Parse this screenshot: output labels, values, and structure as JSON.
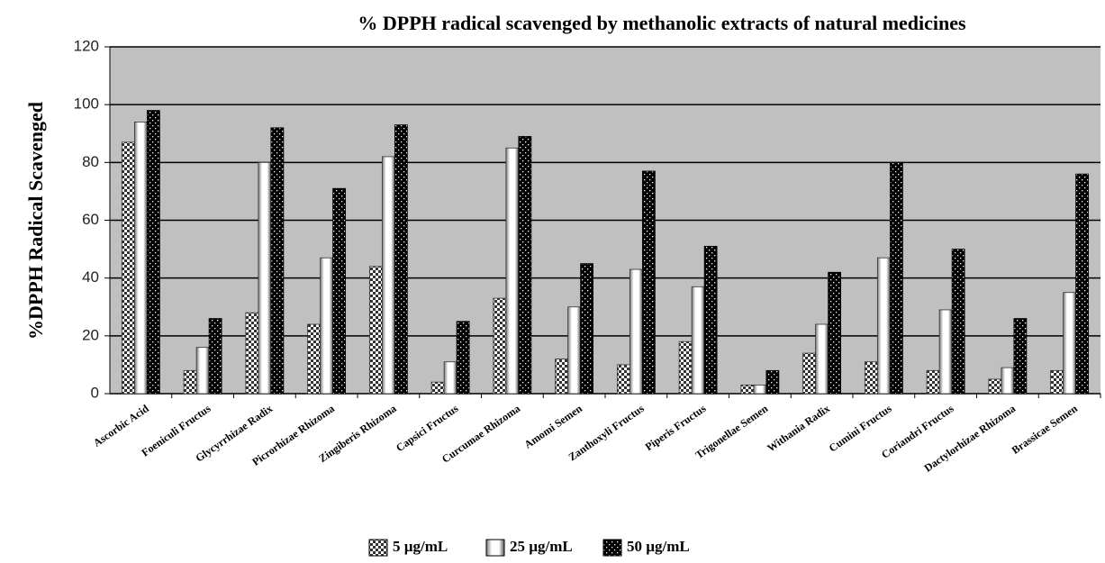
{
  "chart_data": {
    "type": "bar",
    "title": "% DPPH radical scavenged by methanolic extracts of natural medicines",
    "y_label": "%DPPH Radical Scavenged",
    "categories": [
      "Ascorbic Acid",
      "Foeniculi Fructus",
      "Glycyrrhizae Radix",
      "Picrorhizae Rhizoma",
      "Zingiberis Rhizoma",
      "Capsici Fructus",
      "Curcumae Rhizoma",
      "Amomi Semen",
      "Zanthoxyli Fructus",
      "Piperis Fructus",
      "Trigonellae Semen",
      "Withania Radix",
      "Cumini Fructus",
      "Coriandri Fructus",
      "Dactylorhizae Rhizoma",
      "Brassicae Semen"
    ],
    "series": [
      {
        "name": "5 µg/mL",
        "color": "#808080",
        "values": [
          87,
          8,
          28,
          24,
          44,
          4,
          33,
          12,
          10,
          18,
          3,
          14,
          11,
          8,
          5,
          8
        ]
      },
      {
        "name": "25 µg/mL",
        "color": "#ffffff",
        "values": [
          94,
          16,
          80,
          47,
          82,
          11,
          85,
          30,
          43,
          37,
          3,
          24,
          47,
          29,
          9,
          35
        ]
      },
      {
        "name": "50 µg/mL",
        "color": "#000000",
        "values": [
          98,
          26,
          92,
          71,
          93,
          25,
          89,
          45,
          77,
          51,
          8,
          42,
          80,
          50,
          26,
          76
        ]
      }
    ],
    "ylim": [
      0,
      120
    ],
    "yticks": [
      0,
      20,
      40,
      60,
      80,
      100,
      120
    ],
    "grid": true,
    "legend": "bottom"
  }
}
